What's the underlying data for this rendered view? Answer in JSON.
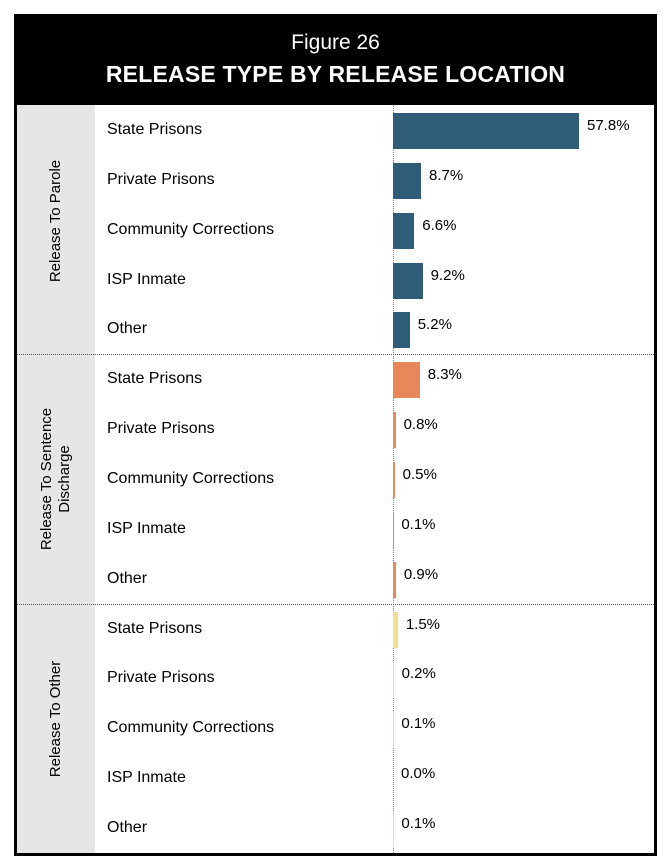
{
  "chart_data": {
    "type": "grouped-bar",
    "title": "Figure 26",
    "subtitle": "RELEASE TYPE BY RELEASE LOCATION",
    "groups": [
      {
        "name": "Release To Parole",
        "color": "#2f5d78",
        "categories": [
          "State Prisons",
          "Private Prisons",
          "Community Corrections",
          "ISP Inmate",
          "Other"
        ],
        "values": [
          57.8,
          8.7,
          6.6,
          9.2,
          5.2
        ],
        "value_labels": [
          "57.8%",
          "8.7%",
          "6.6%",
          "9.2%",
          "5.2%"
        ]
      },
      {
        "name": "Release To Sentence Discharge",
        "color": "#e8875a",
        "categories": [
          "State Prisons",
          "Private Prisons",
          "Community Corrections",
          "ISP Inmate",
          "Other"
        ],
        "values": [
          8.3,
          0.8,
          0.5,
          0.1,
          0.9
        ],
        "value_labels": [
          "8.3%",
          "0.8%",
          "0.5%",
          "0.1%",
          "0.9%"
        ]
      },
      {
        "name": "Release To Other",
        "color": "#f2e08c",
        "categories": [
          "State Prisons",
          "Private Prisons",
          "Community Corrections",
          "ISP Inmate",
          "Other"
        ],
        "values": [
          1.5,
          0.2,
          0.1,
          0.0,
          0.1
        ],
        "value_labels": [
          "1.5%",
          "0.2%",
          "0.1%",
          "0.0%",
          "0.1%"
        ]
      }
    ]
  }
}
